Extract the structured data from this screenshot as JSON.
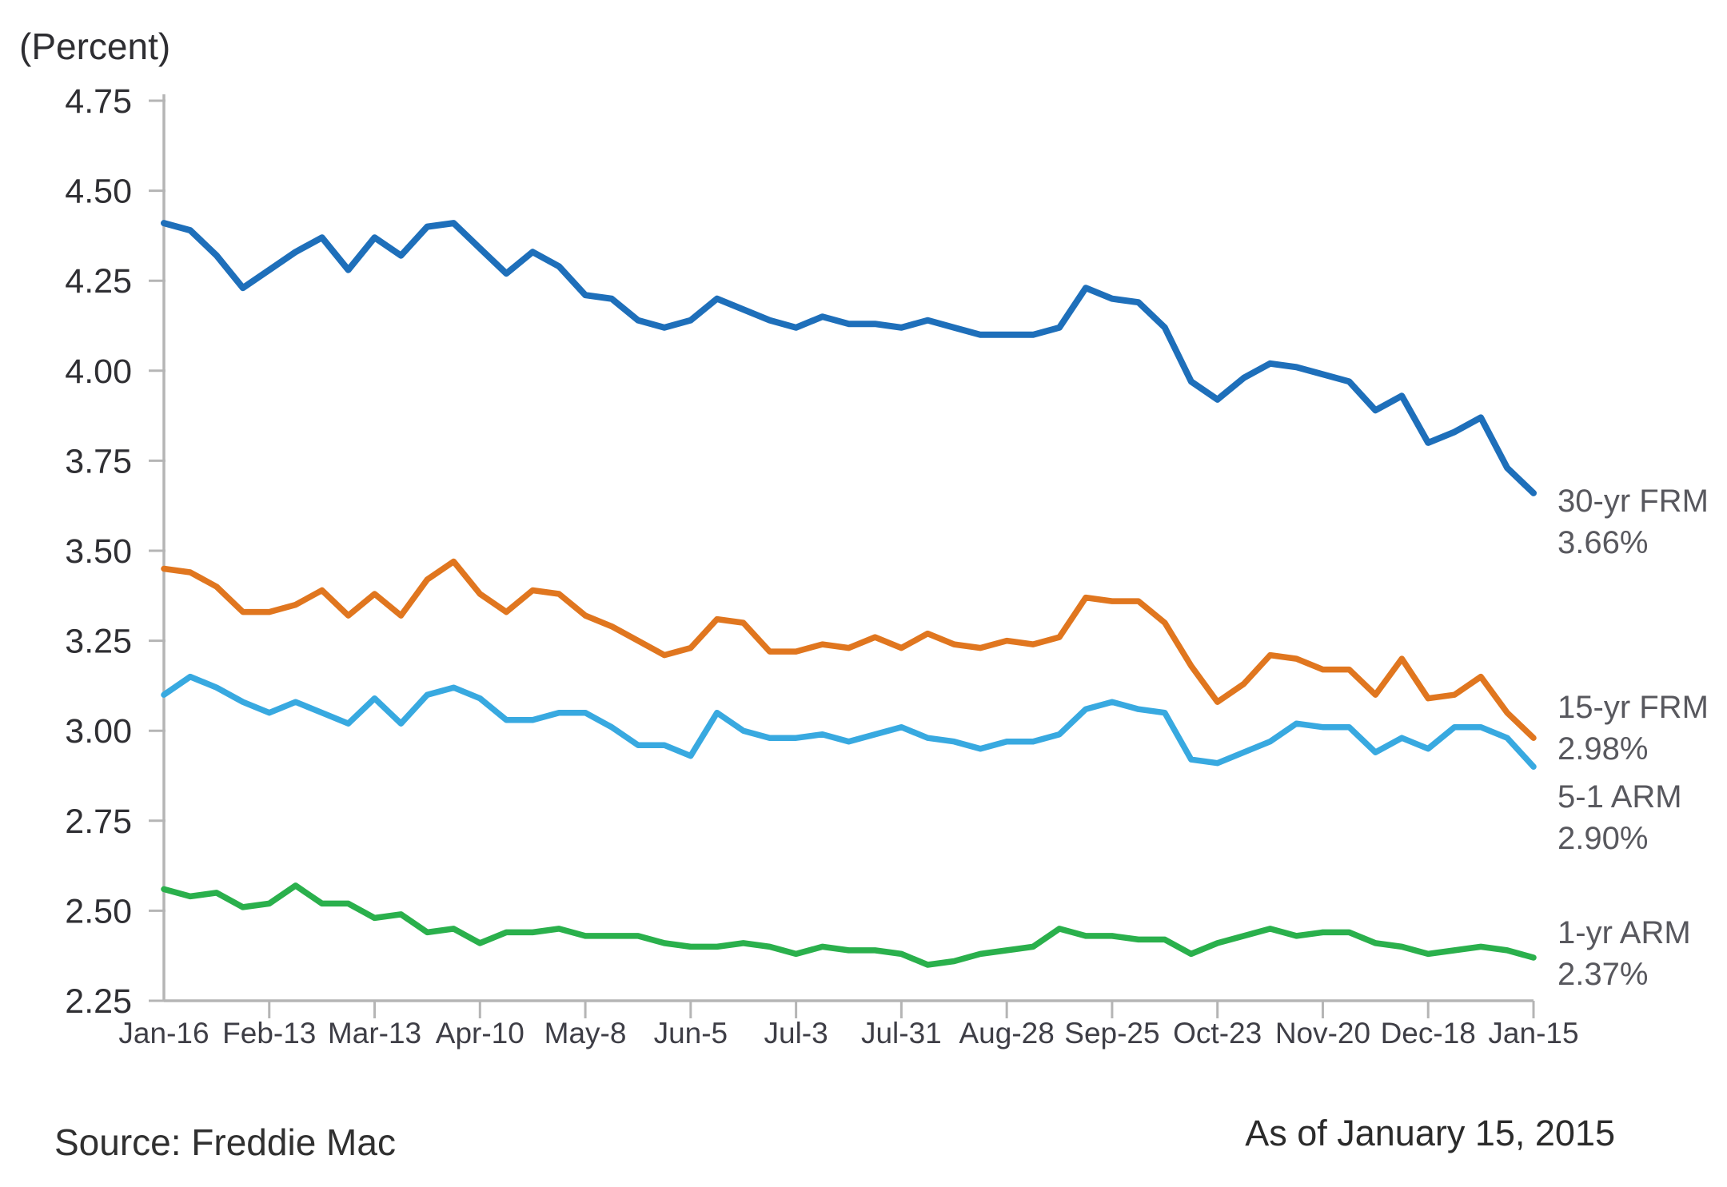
{
  "chart": {
    "title": "(Percent)",
    "footer": {
      "source": "Source: Freddie Mac",
      "as_of": "As of January 15, 2015"
    }
  },
  "chart_data": {
    "type": "line",
    "title": "(Percent)",
    "xlabel": "",
    "ylabel": "(Percent)",
    "ylim": [
      2.25,
      4.75
    ],
    "grid": false,
    "legend_position": "right-end-of-line",
    "y_ticks": [
      4.75,
      4.5,
      4.25,
      4.0,
      3.75,
      3.5,
      3.25,
      3.0,
      2.75,
      2.5,
      2.25
    ],
    "y_tick_labels": [
      "4.75",
      "4.50",
      "4.25",
      "4.00",
      "3.75",
      "3.50",
      "3.25",
      "3.00",
      "2.75",
      "2.50",
      "2.25"
    ],
    "x_tick_labels": [
      "Jan-16",
      "Feb-13",
      "Mar-13",
      "Apr-10",
      "May-8",
      "Jun-5",
      "Jul-3",
      "Jul-31",
      "Aug-28",
      "Sep-25",
      "Oct-23",
      "Nov-20",
      "Dec-18",
      "Jan-15"
    ],
    "x_tick_weeks": [
      0,
      4,
      8,
      12,
      16,
      20,
      24,
      28,
      32,
      36,
      40,
      44,
      48,
      52
    ],
    "x": [
      "Jan-16",
      "Jan-23",
      "Jan-30",
      "Feb-6",
      "Feb-13",
      "Feb-20",
      "Feb-27",
      "Mar-6",
      "Mar-13",
      "Mar-20",
      "Mar-27",
      "Apr-3",
      "Apr-10",
      "Apr-17",
      "Apr-24",
      "May-1",
      "May-8",
      "May-15",
      "May-22",
      "May-29",
      "Jun-5",
      "Jun-12",
      "Jun-19",
      "Jun-26",
      "Jul-3",
      "Jul-10",
      "Jul-17",
      "Jul-24",
      "Jul-31",
      "Aug-7",
      "Aug-14",
      "Aug-21",
      "Aug-28",
      "Sep-4",
      "Sep-11",
      "Sep-18",
      "Sep-25",
      "Oct-2",
      "Oct-9",
      "Oct-16",
      "Oct-23",
      "Oct-30",
      "Nov-6",
      "Nov-13",
      "Nov-20",
      "Nov-26",
      "Dec-4",
      "Dec-11",
      "Dec-18",
      "Dec-24",
      "Dec-31",
      "Jan-8",
      "Jan-15"
    ],
    "series": [
      {
        "name": "30-yr FRM",
        "color": "#1e6fba",
        "final_value": "3.66%",
        "end_label_lines": [
          "30-yr FRM",
          "3.66%"
        ],
        "values": [
          4.41,
          4.39,
          4.32,
          4.23,
          4.28,
          4.33,
          4.37,
          4.28,
          4.37,
          4.32,
          4.4,
          4.41,
          4.34,
          4.27,
          4.33,
          4.29,
          4.21,
          4.2,
          4.14,
          4.12,
          4.14,
          4.2,
          4.17,
          4.14,
          4.12,
          4.15,
          4.13,
          4.13,
          4.12,
          4.14,
          4.12,
          4.1,
          4.1,
          4.1,
          4.12,
          4.23,
          4.2,
          4.19,
          4.12,
          3.97,
          3.92,
          3.98,
          4.02,
          4.01,
          3.99,
          3.97,
          3.89,
          3.93,
          3.8,
          3.83,
          3.87,
          3.73,
          3.66
        ]
      },
      {
        "name": "15-yr FRM",
        "color": "#e0761f",
        "final_value": "2.98%",
        "end_label_lines": [
          "15-yr FRM",
          "2.98%"
        ],
        "values": [
          3.45,
          3.44,
          3.4,
          3.33,
          3.33,
          3.35,
          3.39,
          3.32,
          3.38,
          3.32,
          3.42,
          3.47,
          3.38,
          3.33,
          3.39,
          3.38,
          3.32,
          3.29,
          3.25,
          3.21,
          3.23,
          3.31,
          3.3,
          3.22,
          3.22,
          3.24,
          3.23,
          3.26,
          3.23,
          3.27,
          3.24,
          3.23,
          3.25,
          3.24,
          3.26,
          3.37,
          3.36,
          3.36,
          3.3,
          3.18,
          3.08,
          3.13,
          3.21,
          3.2,
          3.17,
          3.17,
          3.1,
          3.2,
          3.09,
          3.1,
          3.15,
          3.05,
          2.98
        ]
      },
      {
        "name": "5-1 ARM",
        "color": "#38a9e0",
        "final_value": "2.90%",
        "end_label_lines": [
          "5-1 ARM",
          "2.90%"
        ],
        "values": [
          3.1,
          3.15,
          3.12,
          3.08,
          3.05,
          3.08,
          3.05,
          3.02,
          3.09,
          3.02,
          3.1,
          3.12,
          3.09,
          3.03,
          3.03,
          3.05,
          3.05,
          3.01,
          2.96,
          2.96,
          2.93,
          3.05,
          3.0,
          2.98,
          2.98,
          2.99,
          2.97,
          2.99,
          3.01,
          2.98,
          2.97,
          2.95,
          2.97,
          2.97,
          2.99,
          3.06,
          3.08,
          3.06,
          3.05,
          2.92,
          2.91,
          2.94,
          2.97,
          3.02,
          3.01,
          3.01,
          2.94,
          2.98,
          2.95,
          3.01,
          3.01,
          2.98,
          2.9
        ]
      },
      {
        "name": "1-yr ARM",
        "color": "#2ab04c",
        "final_value": "2.37%",
        "end_label_lines": [
          "1-yr ARM",
          "2.37%"
        ],
        "values": [
          2.56,
          2.54,
          2.55,
          2.51,
          2.52,
          2.57,
          2.52,
          2.52,
          2.48,
          2.49,
          2.44,
          2.45,
          2.41,
          2.44,
          2.44,
          2.45,
          2.43,
          2.43,
          2.43,
          2.41,
          2.4,
          2.4,
          2.41,
          2.4,
          2.38,
          2.4,
          2.39,
          2.39,
          2.38,
          2.35,
          2.36,
          2.38,
          2.39,
          2.4,
          2.45,
          2.43,
          2.43,
          2.42,
          2.42,
          2.38,
          2.41,
          2.43,
          2.45,
          2.43,
          2.44,
          2.44,
          2.41,
          2.4,
          2.38,
          2.39,
          2.4,
          2.39,
          2.37
        ]
      }
    ]
  }
}
